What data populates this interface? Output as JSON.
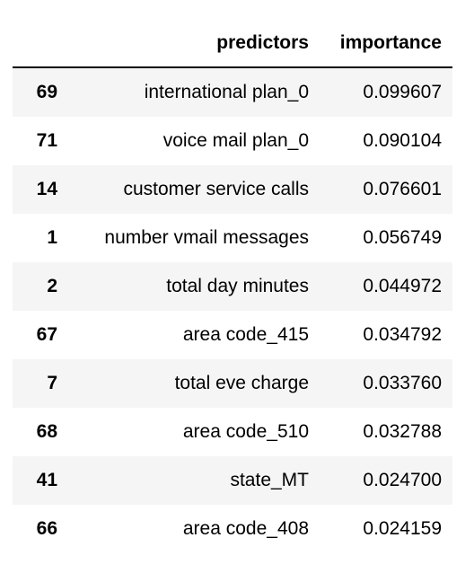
{
  "table": {
    "columns": [
      "",
      "predictors",
      "importance"
    ],
    "rows": [
      {
        "index": "69",
        "predictor": "international plan_0",
        "importance": "0.099607"
      },
      {
        "index": "71",
        "predictor": "voice mail plan_0",
        "importance": "0.090104"
      },
      {
        "index": "14",
        "predictor": "customer service calls",
        "importance": "0.076601"
      },
      {
        "index": "1",
        "predictor": "number vmail messages",
        "importance": "0.056749"
      },
      {
        "index": "2",
        "predictor": "total day minutes",
        "importance": "0.044972"
      },
      {
        "index": "67",
        "predictor": "area code_415",
        "importance": "0.034792"
      },
      {
        "index": "7",
        "predictor": "total eve charge",
        "importance": "0.033760"
      },
      {
        "index": "68",
        "predictor": "area code_510",
        "importance": "0.032788"
      },
      {
        "index": "41",
        "predictor": "state_MT",
        "importance": "0.024700"
      },
      {
        "index": "66",
        "predictor": "area code_408",
        "importance": "0.024159"
      }
    ]
  }
}
